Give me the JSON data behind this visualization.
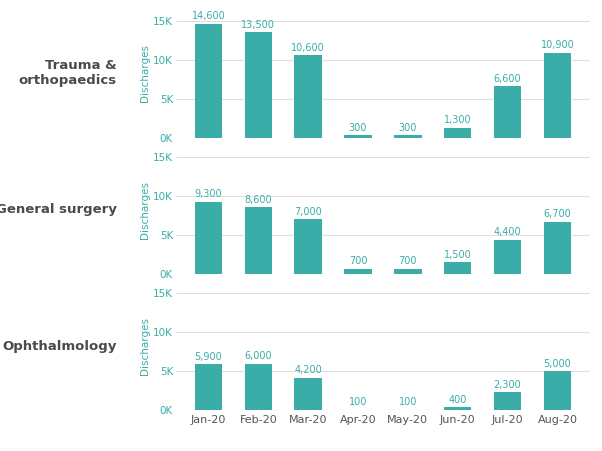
{
  "months": [
    "Jan-20",
    "Feb-20",
    "Mar-20",
    "Apr-20",
    "May-20",
    "Jun-20",
    "Jul-20",
    "Aug-20"
  ],
  "series": [
    {
      "label": "Trauma &\northopaedics",
      "values": [
        14600,
        13500,
        10600,
        300,
        300,
        1300,
        6600,
        10900
      ]
    },
    {
      "label": "General surgery",
      "values": [
        9300,
        8600,
        7000,
        700,
        700,
        1500,
        4400,
        6700
      ]
    },
    {
      "label": "Ophthalmology",
      "values": [
        5900,
        6000,
        4200,
        100,
        100,
        400,
        2300,
        5000
      ]
    }
  ],
  "bar_color": "#3aada8",
  "label_color": "#3aada8",
  "axis_label_color": "#3aada8",
  "tick_color": "#3aada8",
  "category_label_color": "#4a4a4a",
  "background_color": "#ffffff",
  "grid_color": "#d8d8d8",
  "ylim": [
    0,
    16500
  ],
  "yticks": [
    0,
    5000,
    10000,
    15000
  ],
  "ytick_labels": [
    "0K",
    "5K",
    "10K",
    "15K"
  ],
  "ylabel": "Discharges",
  "bar_width": 0.55,
  "value_fontsize": 7.0,
  "ylabel_fontsize": 7.5,
  "category_fontsize": 9.5,
  "tick_fontsize": 7.5,
  "xticklabel_fontsize": 8.0
}
